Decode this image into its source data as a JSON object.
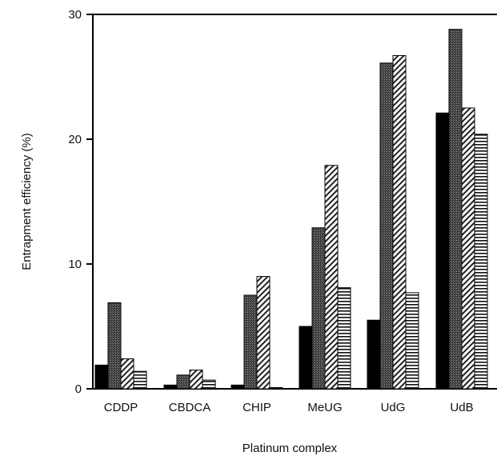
{
  "chart_data": {
    "type": "bar",
    "title": "",
    "xlabel": "Platinum complex",
    "ylabel": "Entrapment efficiency (%)",
    "ylim": [
      0,
      30
    ],
    "yticks": [
      "0",
      "10",
      "20",
      "30"
    ],
    "categories": [
      "CDDP",
      "CBDCA",
      "CHIP",
      "MeUG",
      "UdG",
      "UdB"
    ],
    "series": [
      {
        "pattern": "solid-black",
        "values": [
          1.9,
          0.3,
          0.3,
          5.0,
          5.5,
          22.1
        ]
      },
      {
        "pattern": "dark-stipple",
        "values": [
          6.9,
          1.1,
          7.5,
          12.9,
          26.1,
          28.8
        ]
      },
      {
        "pattern": "diagonal-hatch",
        "values": [
          2.4,
          1.5,
          9.0,
          17.9,
          26.7,
          22.5
        ]
      },
      {
        "pattern": "horizontal-lines",
        "values": [
          1.4,
          0.7,
          0.1,
          8.1,
          7.7,
          20.4
        ]
      }
    ],
    "grid": false,
    "legend": "none"
  }
}
